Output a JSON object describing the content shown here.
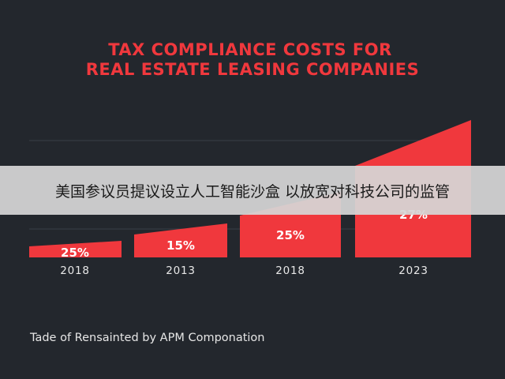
{
  "colors": {
    "background": "#23272d",
    "bar": "#f0383d",
    "bar_light": "#ff5a5c",
    "title": "#f0383d",
    "axis_text": "#e8e8e8",
    "data_label": "#ffffff",
    "gridline": "#3a3f46"
  },
  "overlay": {
    "text": "美国参议员提议设立人工智能沙盒 以放宽对科技公司的监管"
  },
  "footer": {
    "text": "Tade of Rensainted by APM Componation"
  },
  "chart_data": {
    "type": "bar",
    "title": "TAX COMPLIANCE COSTS FOR",
    "subtitle": "REAL ESTATE LEASING COMPANIES",
    "categories": [
      "2018",
      "2013",
      "2018",
      "2023"
    ],
    "series": [
      {
        "values": [
          25,
          15,
          25,
          27
        ]
      }
    ],
    "data_labels": [
      "25%",
      "15%",
      "25%",
      "27%"
    ],
    "grid": true,
    "legend": "none"
  }
}
